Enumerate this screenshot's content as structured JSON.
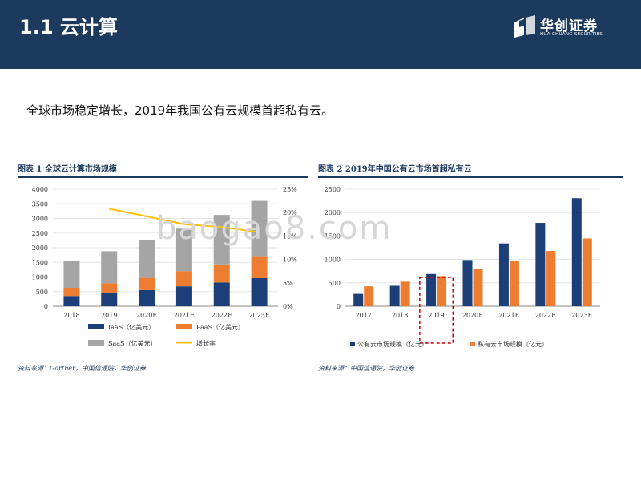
{
  "header": {
    "title": "1.1 云计算",
    "logo_cn": "华创证券",
    "logo_en": "HUA CHUANG SECURITIES"
  },
  "subtitle": "全球市场稳定增长，2019年我国公有云规模首超私有云。",
  "watermark": "baogao8.com",
  "colors": {
    "header": "#1c3a5e",
    "navy": "#1c3f7a",
    "orange": "#ed7d31",
    "gray": "#a5a5a5",
    "yellow": "#ffc000"
  },
  "figures": [
    {
      "title": "图表 1  全球云计算市场规模",
      "source": "资料来源：Gartner，中国信通院，华创证券"
    },
    {
      "title": "图表 2  2019年中国公有云市场首超私有云",
      "source": "资料来源：中国信通院，华创证券"
    }
  ],
  "chart_data": [
    {
      "type": "bar",
      "stacked": true,
      "categories": [
        "2018",
        "2019",
        "2020E",
        "2021E",
        "2022E",
        "2023E"
      ],
      "series": [
        {
          "name": "IaaS（亿美元）",
          "values": [
            350,
            440,
            550,
            680,
            810,
            960
          ],
          "color": "#1c3f7a"
        },
        {
          "name": "PaaS（亿美元）",
          "values": [
            280,
            350,
            420,
            520,
            620,
            750
          ],
          "color": "#ed7d31"
        },
        {
          "name": "SaaS（亿美元）",
          "values": [
            930,
            1090,
            1280,
            1450,
            1690,
            1890
          ],
          "color": "#a5a5a5"
        }
      ],
      "line_series": {
        "name": "增长率",
        "x": [
          "2019",
          "2020E",
          "2021E",
          "2022E",
          "2023E"
        ],
        "values": [
          20.8,
          19.2,
          17.5,
          16.9,
          15.8
        ],
        "color": "#ffc000",
        "axis": "right"
      },
      "ylim": [
        0,
        4000
      ],
      "yticks": [
        "0",
        "500",
        "1000",
        "1500",
        "2000",
        "2500",
        "3000",
        "3500",
        "4000"
      ],
      "y2lim": [
        0,
        25
      ],
      "y2ticks": [
        "0%",
        "5%",
        "10%",
        "15%",
        "20%",
        "25%"
      ],
      "legend": [
        "IaaS（亿美元）",
        "PaaS（亿美元）",
        "SaaS（亿美元）",
        "增长率"
      ],
      "legend_position": "bottom"
    },
    {
      "type": "bar",
      "categories": [
        "2017",
        "2018",
        "2019",
        "2020E",
        "2021E",
        "2022E",
        "2023E"
      ],
      "series": [
        {
          "name": "公有云市场规模（亿元）",
          "values": [
            264,
            437,
            689,
            987,
            1341,
            1780,
            2307
          ],
          "color": "#1c3f7a"
        },
        {
          "name": "私有云市场规模（亿元）",
          "values": [
            426,
            525,
            646,
            791,
            966,
            1181,
            1447
          ],
          "color": "#ed7d31"
        }
      ],
      "ylim": [
        0,
        2500
      ],
      "yticks": [
        "0",
        "500",
        "1000",
        "1500",
        "2000",
        "2500"
      ],
      "highlight_category": "2019",
      "legend": [
        "公有云市场规模（亿元）",
        "私有云市场规模（亿元）"
      ],
      "legend_position": "bottom"
    }
  ]
}
